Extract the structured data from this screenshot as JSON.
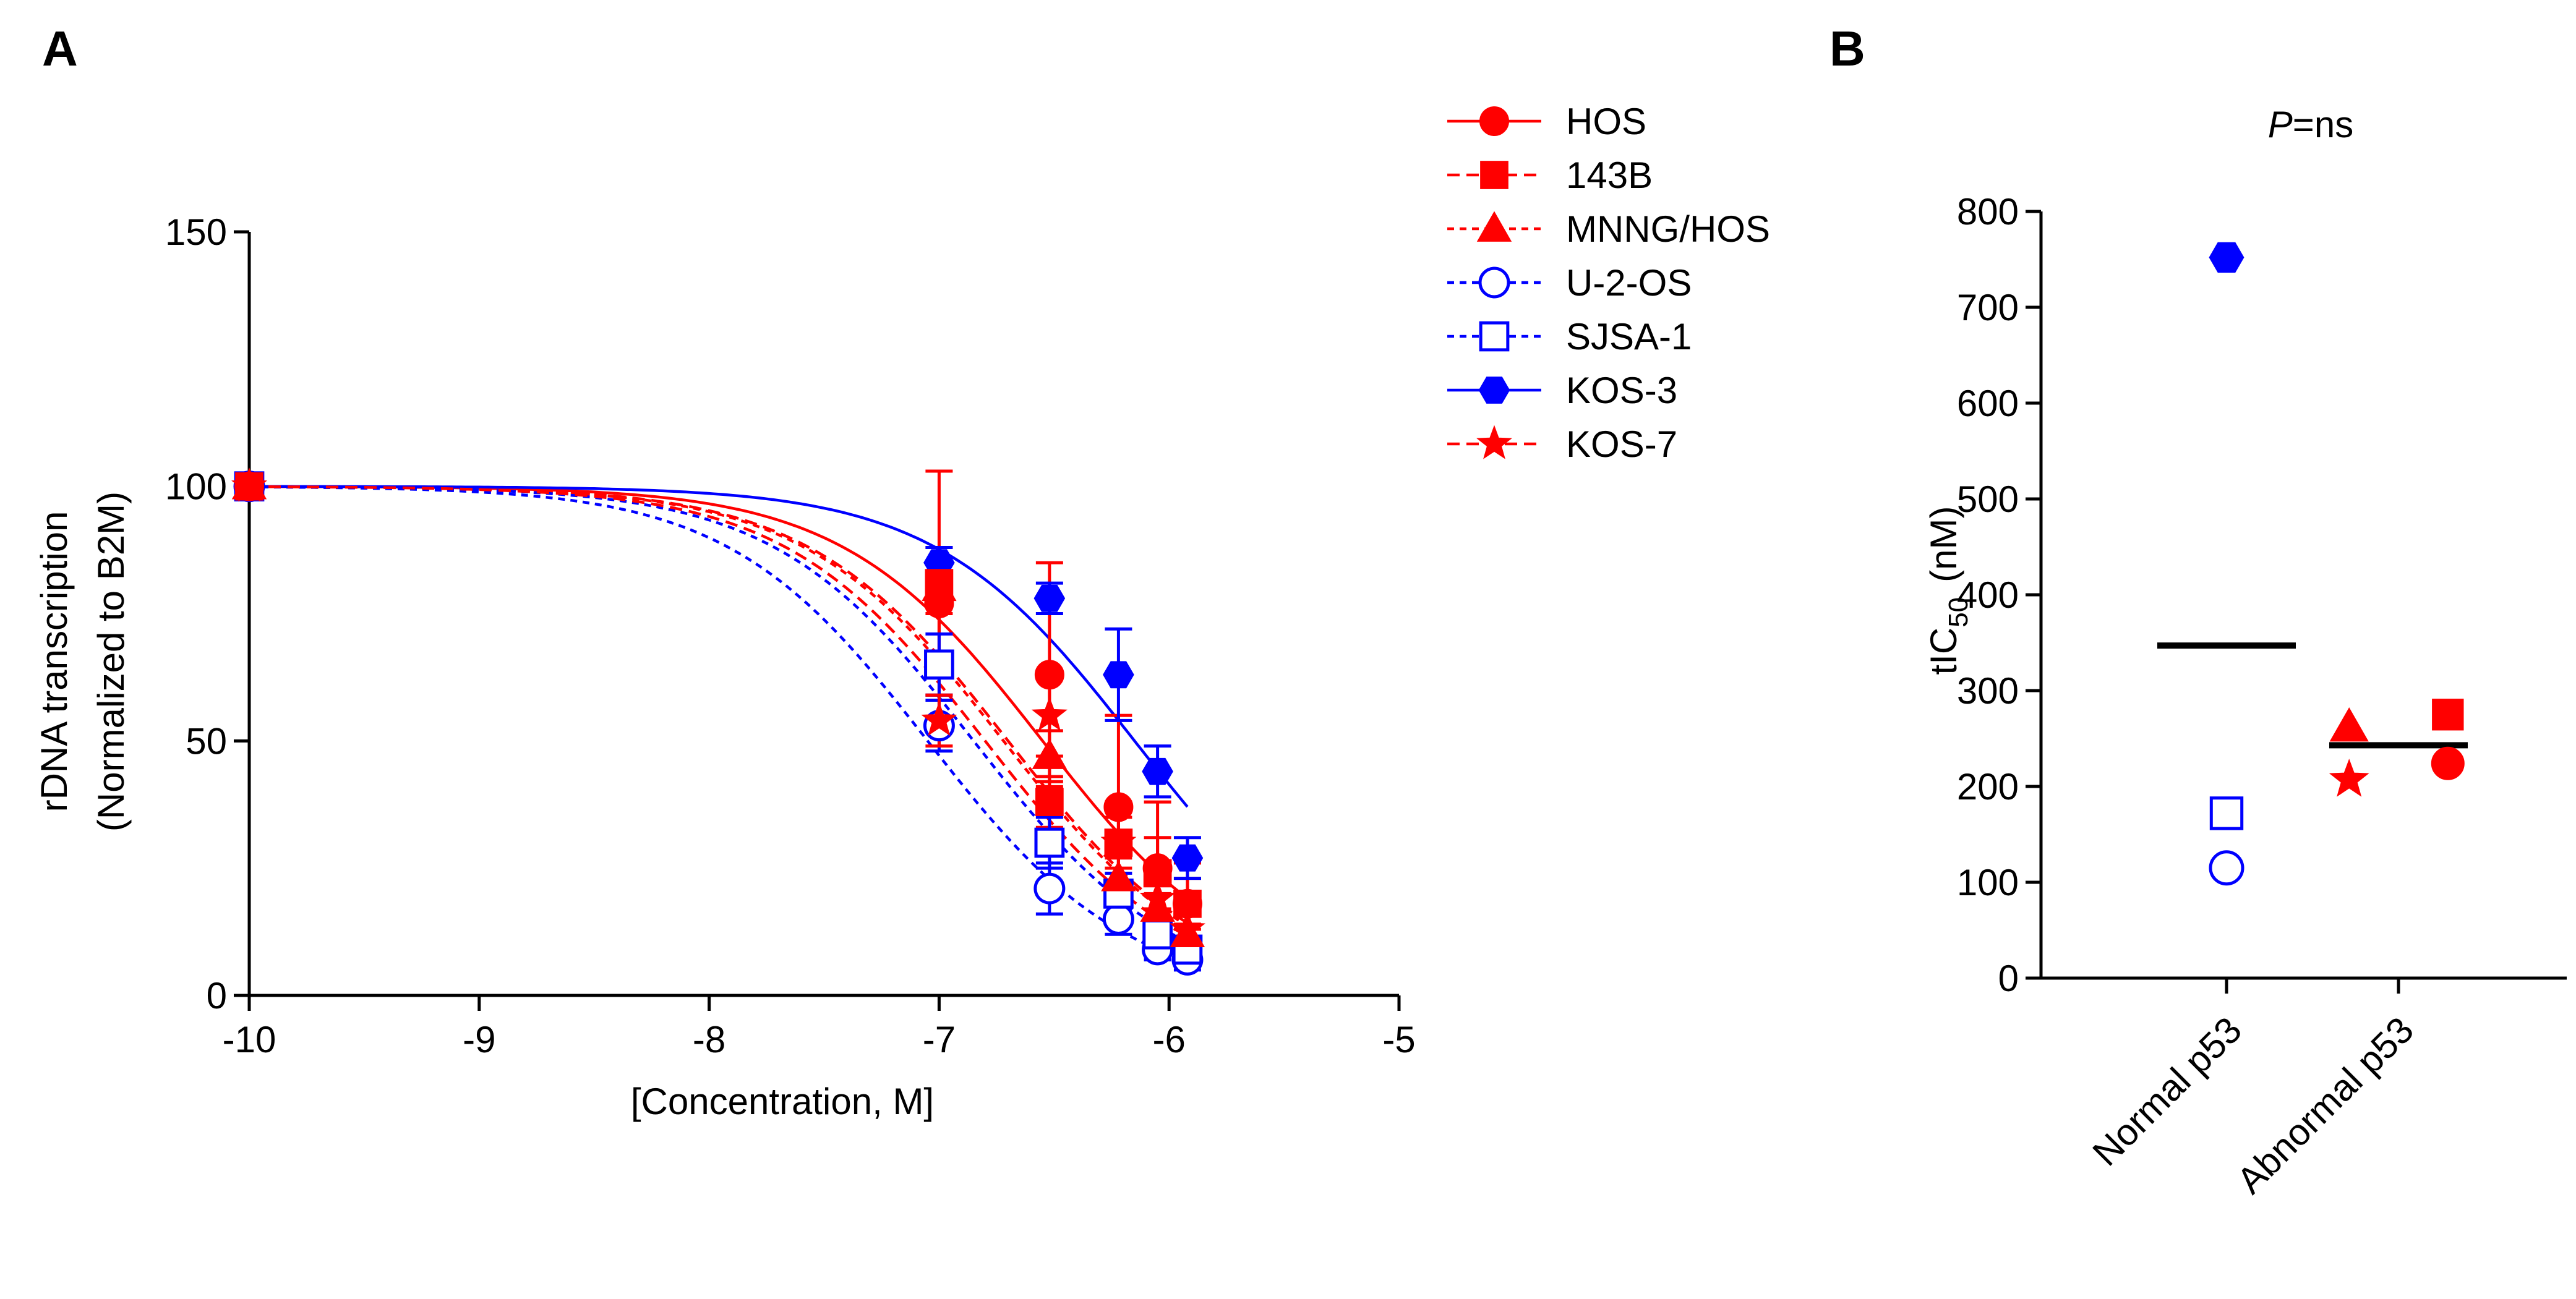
{
  "panels": {
    "a": "A",
    "b": "B"
  },
  "chart_data": [
    {
      "type": "line",
      "panel": "A",
      "xlabel": "[Concentration, M]",
      "ylabel_line1": "rDNA transcription",
      "ylabel_line2": "(Normalized to B2M)",
      "xlim": [
        -10,
        -5
      ],
      "ylim": [
        0,
        150
      ],
      "xticks": [
        -10,
        -9,
        -8,
        -7,
        -6,
        -5
      ],
      "yticks": [
        0,
        50,
        100,
        150
      ],
      "x": [
        -10,
        -7,
        -6.52,
        -6.22,
        -6.05,
        -5.92
      ],
      "legend_position": "right",
      "series": [
        {
          "name": "HOS",
          "color": "#ff0000",
          "marker": "circle",
          "filled": true,
          "dash": "solid",
          "values": [
            100,
            77,
            63,
            37,
            25,
            18
          ],
          "errors": [
            0,
            11,
            22,
            18,
            13,
            8
          ],
          "ic50_log": -6.55
        },
        {
          "name": "143B",
          "color": "#ff0000",
          "marker": "square",
          "filled": true,
          "dash": "longdash",
          "values": [
            100,
            81,
            38,
            30,
            24,
            18
          ],
          "errors": [
            0,
            22,
            5,
            8,
            7,
            5
          ],
          "ic50_log": -6.7
        },
        {
          "name": "MNNG/HOS",
          "color": "#ff0000",
          "marker": "triangle",
          "filled": true,
          "dash": "shortdash",
          "values": [
            100,
            80,
            47,
            23,
            17,
            12
          ],
          "errors": [
            0,
            5,
            5,
            4,
            3,
            2
          ],
          "ic50_log": -6.72
        },
        {
          "name": "U-2-OS",
          "color": "#0000ff",
          "marker": "circle",
          "filled": false,
          "dash": "shortdash",
          "values": [
            100,
            53,
            21,
            15,
            9,
            7
          ],
          "errors": [
            0,
            5,
            5,
            3,
            2,
            2
          ],
          "ic50_log": -7.05
        },
        {
          "name": "SJSA-1",
          "color": "#0000ff",
          "marker": "square",
          "filled": false,
          "dash": "shortdash",
          "values": [
            100,
            65,
            30,
            20,
            12,
            9
          ],
          "errors": [
            0,
            6,
            5,
            4,
            3,
            2
          ],
          "ic50_log": -6.85
        },
        {
          "name": "KOS-3",
          "color": "#0000ff",
          "marker": "hexagon",
          "filled": true,
          "dash": "solid",
          "values": [
            100,
            85,
            78,
            63,
            44,
            27
          ],
          "errors": [
            0,
            3,
            3,
            9,
            5,
            4
          ],
          "ic50_log": -6.15
        },
        {
          "name": "KOS-7",
          "color": "#ff0000",
          "marker": "star",
          "filled": true,
          "dash": "longdash",
          "values": [
            100,
            54,
            55,
            30,
            19,
            13
          ],
          "errors": [
            0,
            5,
            8,
            5,
            4,
            3
          ],
          "ic50_log": -6.8
        }
      ]
    },
    {
      "type": "scatter",
      "panel": "B",
      "title_italic": "P",
      "title_rest": "=ns",
      "ylabel_main": "tIC",
      "ylabel_sub": "50",
      "ylabel_unit": "(nM)",
      "ylim": [
        0,
        800
      ],
      "yticks": [
        0,
        100,
        200,
        300,
        400,
        500,
        600,
        700,
        800
      ],
      "categories": [
        "Normal p53",
        "Abnormal p53"
      ],
      "means": [
        347,
        243
      ],
      "points": [
        {
          "name": "KOS-3",
          "category": 0,
          "offset": 0,
          "value": 752,
          "marker": "hexagon",
          "filled": true,
          "color": "#0000ff"
        },
        {
          "name": "SJSA-1",
          "category": 0,
          "offset": 0,
          "value": 172,
          "marker": "square",
          "filled": false,
          "color": "#0000ff"
        },
        {
          "name": "U-2-OS",
          "category": 0,
          "offset": 0,
          "value": 115,
          "marker": "circle",
          "filled": false,
          "color": "#0000ff"
        },
        {
          "name": "143B",
          "category": 1,
          "offset": 0.35,
          "value": 275,
          "marker": "square",
          "filled": true,
          "color": "#ff0000"
        },
        {
          "name": "MNNG/HOS",
          "category": 1,
          "offset": -0.35,
          "value": 262,
          "marker": "triangle",
          "filled": true,
          "color": "#ff0000"
        },
        {
          "name": "HOS",
          "category": 1,
          "offset": 0.35,
          "value": 224,
          "marker": "circle",
          "filled": true,
          "color": "#ff0000"
        },
        {
          "name": "KOS-7",
          "category": 1,
          "offset": -0.35,
          "value": 207,
          "marker": "star",
          "filled": true,
          "color": "#ff0000"
        }
      ]
    }
  ]
}
